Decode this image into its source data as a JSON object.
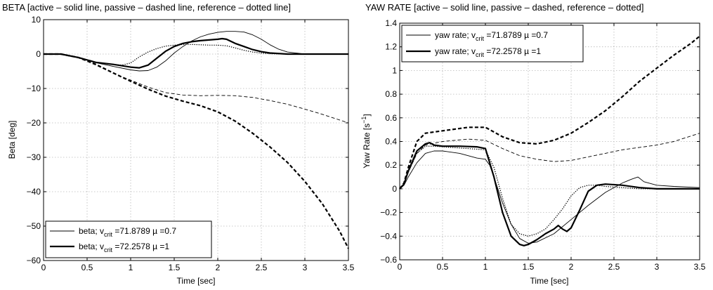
{
  "chart_data": [
    {
      "type": "line",
      "title": "BETA [active – solid line, passive – dashed line, reference – dotted line]",
      "xlabel": "Time [sec]",
      "ylabel": "Beta [deg]",
      "xlim": [
        0,
        3.5
      ],
      "ylim": [
        -60,
        10
      ],
      "xticks": [
        "0",
        "0.5",
        "1",
        "1.5",
        "2",
        "2.5",
        "3",
        "3.5"
      ],
      "yticks": [
        "10",
        "0",
        "−10",
        "−20",
        "−30",
        "−40",
        "−50",
        "−60"
      ],
      "grid": true,
      "legend_position": "bottom-left",
      "legend": [
        {
          "prefix": "beta; v",
          "sub": "crit",
          "suffix": " =71.8789 µ =0.7",
          "style": "thin"
        },
        {
          "prefix": "beta; v",
          "sub": "crit",
          "suffix": " =72.2578 µ =1",
          "style": "thick"
        }
      ],
      "series": [
        {
          "style": "thin-solid",
          "x": [
            0,
            0.2,
            0.4,
            0.6,
            0.8,
            1.0,
            1.1,
            1.2,
            1.3,
            1.4,
            1.5,
            1.6,
            1.7,
            1.8,
            1.9,
            2.0,
            2.1,
            2.2,
            2.3,
            2.4,
            2.5,
            2.6,
            2.7,
            2.8,
            3.0,
            3.2,
            3.5
          ],
          "y": [
            0,
            0,
            -1,
            -2.5,
            -3.6,
            -4.6,
            -4.9,
            -4.8,
            -3.8,
            -2.0,
            0.3,
            2.2,
            3.8,
            5.0,
            5.8,
            6.3,
            6.6,
            6.6,
            6.4,
            5.6,
            4.3,
            2.7,
            1.4,
            0.6,
            0,
            0,
            0
          ]
        },
        {
          "style": "thick-solid",
          "x": [
            0,
            0.2,
            0.4,
            0.6,
            0.8,
            1.0,
            1.1,
            1.2,
            1.3,
            1.4,
            1.5,
            1.6,
            1.7,
            1.8,
            1.9,
            2.0,
            2.05,
            2.1,
            2.2,
            2.3,
            2.4,
            2.5,
            2.6,
            2.8,
            3.0,
            3.5
          ],
          "y": [
            0,
            0,
            -1,
            -2.4,
            -3.0,
            -3.8,
            -4.0,
            -3.2,
            -1.2,
            0.8,
            2.2,
            3.1,
            3.6,
            3.9,
            4.1,
            4.3,
            4.5,
            4.3,
            3.1,
            2.2,
            1.3,
            0.7,
            0.3,
            0,
            0,
            0
          ]
        },
        {
          "style": "thin-dashed",
          "x": [
            0,
            0.2,
            0.4,
            0.6,
            0.8,
            1.0,
            1.2,
            1.4,
            1.6,
            1.8,
            2.0,
            2.2,
            2.4,
            2.6,
            2.8,
            3.0,
            3.2,
            3.5
          ],
          "y": [
            0,
            0,
            -1,
            -3.2,
            -5.6,
            -7.6,
            -9.6,
            -11.2,
            -11.9,
            -12.1,
            -12.0,
            -12.1,
            -12.6,
            -13.5,
            -14.6,
            -16.0,
            -17.5,
            -20.0
          ]
        },
        {
          "style": "thick-dashed",
          "x": [
            0,
            0.2,
            0.4,
            0.6,
            0.8,
            1.0,
            1.2,
            1.4,
            1.6,
            1.8,
            2.0,
            2.2,
            2.4,
            2.6,
            2.8,
            3.0,
            3.2,
            3.4,
            3.5
          ],
          "y": [
            0,
            0,
            -1,
            -3.0,
            -5.5,
            -7.9,
            -10.2,
            -12.2,
            -13.7,
            -15.0,
            -16.8,
            -19.5,
            -23.0,
            -27.0,
            -31.5,
            -37.0,
            -43.5,
            -51.5,
            -56.5
          ]
        },
        {
          "style": "dotted",
          "x": [
            0,
            0.2,
            0.4,
            0.6,
            0.8,
            0.9,
            1.0,
            1.1,
            1.2,
            1.3,
            1.4,
            1.5,
            1.6,
            1.7,
            1.8,
            1.9,
            2.0,
            2.1,
            2.2,
            2.3,
            2.4,
            2.5,
            2.6,
            2.8,
            3.0,
            3.5
          ],
          "y": [
            0,
            0,
            -1,
            -2.4,
            -3.1,
            -3.2,
            -2.6,
            -0.8,
            0.6,
            1.6,
            2.3,
            2.6,
            2.8,
            2.8,
            2.7,
            2.6,
            2.6,
            2.4,
            1.8,
            1.1,
            0.6,
            0.3,
            0.1,
            0,
            0,
            0
          ]
        }
      ]
    },
    {
      "type": "line",
      "title": "YAW RATE  [active – solid line, passive – dashed, reference – dotted]",
      "xlabel": "Time [sec]",
      "ylabel_main": "Yaw Rate [s",
      "ylabel_sup": "−1",
      "ylabel_end": "]",
      "xlim": [
        0,
        3.5
      ],
      "ylim": [
        -0.6,
        1.4
      ],
      "xticks": [
        "0",
        "0.5",
        "1",
        "1.5",
        "2",
        "2.5",
        "3",
        "3.5"
      ],
      "yticks": [
        "1.4",
        "1.2",
        "1",
        "0.8",
        "0.6",
        "0.4",
        "0.2",
        "0",
        "−0.2",
        "−0.4",
        "−0.6"
      ],
      "grid": true,
      "legend_position": "top-left",
      "legend": [
        {
          "prefix": "yaw rate; v",
          "sub": "crit",
          "suffix": " =71.8789 µ =0.7",
          "style": "thin"
        },
        {
          "prefix": "yaw rate; v",
          "sub": "crit",
          "suffix": " =72.2578 µ =1",
          "style": "thick"
        }
      ],
      "series": [
        {
          "style": "thin-solid",
          "x": [
            0,
            0.05,
            0.1,
            0.2,
            0.3,
            0.4,
            0.5,
            0.7,
            0.9,
            1.0,
            1.05,
            1.1,
            1.2,
            1.3,
            1.4,
            1.5,
            1.6,
            1.8,
            2.0,
            2.2,
            2.4,
            2.6,
            2.7,
            2.78,
            2.85,
            3.0,
            3.2,
            3.5
          ],
          "y": [
            0,
            0.03,
            0.1,
            0.22,
            0.3,
            0.32,
            0.32,
            0.3,
            0.26,
            0.25,
            0.2,
            0.1,
            -0.12,
            -0.3,
            -0.42,
            -0.46,
            -0.45,
            -0.38,
            -0.26,
            -0.14,
            -0.03,
            0.05,
            0.08,
            0.1,
            0.06,
            0.03,
            0.02,
            0.01
          ]
        },
        {
          "style": "thick-solid",
          "x": [
            0,
            0.05,
            0.1,
            0.2,
            0.3,
            0.35,
            0.4,
            0.5,
            0.7,
            0.9,
            1.0,
            1.1,
            1.2,
            1.3,
            1.4,
            1.45,
            1.5,
            1.6,
            1.7,
            1.8,
            1.85,
            1.9,
            1.95,
            2.0,
            2.1,
            2.2,
            2.3,
            2.4,
            2.6,
            2.8,
            3.0,
            3.5
          ],
          "y": [
            0,
            0.04,
            0.15,
            0.32,
            0.38,
            0.39,
            0.37,
            0.36,
            0.36,
            0.355,
            0.34,
            0.1,
            -0.2,
            -0.4,
            -0.47,
            -0.48,
            -0.47,
            -0.43,
            -0.38,
            -0.34,
            -0.31,
            -0.34,
            -0.36,
            -0.33,
            -0.18,
            -0.02,
            0.03,
            0.04,
            0.03,
            0.01,
            0,
            0
          ]
        },
        {
          "style": "thin-dashed",
          "x": [
            0,
            0.05,
            0.1,
            0.2,
            0.3,
            0.5,
            0.8,
            1.0,
            1.2,
            1.4,
            1.6,
            1.8,
            2.0,
            2.2,
            2.4,
            2.6,
            2.8,
            3.0,
            3.2,
            3.5
          ],
          "y": [
            0,
            0.04,
            0.14,
            0.3,
            0.37,
            0.4,
            0.42,
            0.41,
            0.34,
            0.28,
            0.25,
            0.23,
            0.24,
            0.27,
            0.3,
            0.33,
            0.35,
            0.37,
            0.4,
            0.47
          ]
        },
        {
          "style": "thick-dashed",
          "x": [
            0,
            0.05,
            0.1,
            0.2,
            0.3,
            0.5,
            0.8,
            1.0,
            1.1,
            1.2,
            1.4,
            1.6,
            1.8,
            2.0,
            2.2,
            2.4,
            2.6,
            2.8,
            3.0,
            3.2,
            3.4,
            3.5
          ],
          "y": [
            0,
            0.05,
            0.18,
            0.4,
            0.47,
            0.49,
            0.52,
            0.52,
            0.48,
            0.44,
            0.39,
            0.38,
            0.41,
            0.47,
            0.56,
            0.66,
            0.78,
            0.91,
            1.02,
            1.13,
            1.23,
            1.29
          ]
        },
        {
          "style": "dotted",
          "x": [
            0,
            0.05,
            0.1,
            0.2,
            0.3,
            0.4,
            0.6,
            0.8,
            1.0,
            1.1,
            1.2,
            1.3,
            1.4,
            1.5,
            1.6,
            1.7,
            1.8,
            1.9,
            2.0,
            2.1,
            2.2,
            2.3,
            2.4,
            2.6,
            2.8,
            3.0,
            3.5
          ],
          "y": [
            0,
            0.04,
            0.14,
            0.3,
            0.36,
            0.36,
            0.35,
            0.34,
            0.33,
            0.18,
            -0.08,
            -0.3,
            -0.38,
            -0.4,
            -0.38,
            -0.34,
            -0.26,
            -0.17,
            -0.06,
            0.01,
            0.03,
            0.03,
            0.02,
            0.01,
            0,
            0,
            0
          ]
        }
      ]
    }
  ]
}
